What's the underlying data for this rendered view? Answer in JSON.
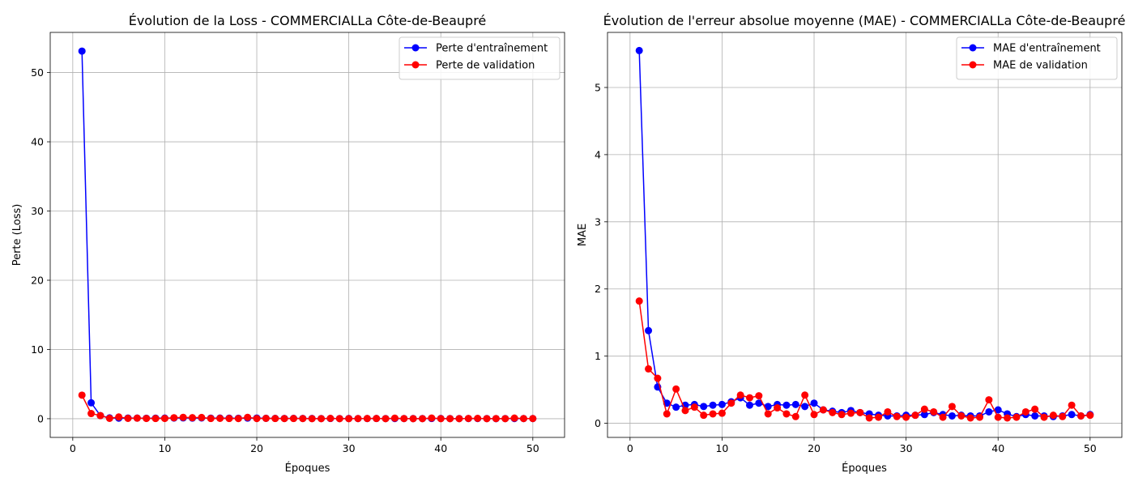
{
  "chart_data": [
    {
      "type": "line",
      "title": "Évolution de la Loss - COMMERCIALLa Côte-de-Beaupré",
      "xlabel": "Époques",
      "ylabel": "Perte (Loss)",
      "xlim": [
        -2.45,
        53.45
      ],
      "ylim": [
        -2.7,
        55.8
      ],
      "xticks": [
        0,
        10,
        20,
        30,
        40,
        50
      ],
      "yticks": [
        0,
        10,
        20,
        30,
        40,
        50
      ],
      "grid": true,
      "legend_position": "top-right",
      "x": [
        1,
        2,
        3,
        4,
        5,
        6,
        7,
        8,
        9,
        10,
        11,
        12,
        13,
        14,
        15,
        16,
        17,
        18,
        19,
        20,
        21,
        22,
        23,
        24,
        25,
        26,
        27,
        28,
        29,
        30,
        31,
        32,
        33,
        34,
        35,
        36,
        37,
        38,
        39,
        40,
        41,
        42,
        43,
        44,
        45,
        46,
        47,
        48,
        49,
        50
      ],
      "series": [
        {
          "name": "Perte d'entraînement",
          "color": "#0000ff",
          "values": [
            53.1,
            2.3,
            0.45,
            0.12,
            0.08,
            0.1,
            0.09,
            0.07,
            0.08,
            0.09,
            0.1,
            0.12,
            0.09,
            0.11,
            0.08,
            0.09,
            0.08,
            0.07,
            0.09,
            0.1,
            0.06,
            0.05,
            0.04,
            0.05,
            0.04,
            0.03,
            0.02,
            0.03,
            0.02,
            0.03,
            0.02,
            0.02,
            0.03,
            0.02,
            0.02,
            0.02,
            0.02,
            0.02,
            0.03,
            0.03,
            0.02,
            0.02,
            0.02,
            0.02,
            0.02,
            0.01,
            0.02,
            0.02,
            0.02,
            0.02
          ]
        },
        {
          "name": "Perte de validation",
          "color": "#ff0000",
          "values": [
            3.4,
            0.75,
            0.45,
            0.05,
            0.25,
            0.05,
            0.08,
            0.04,
            0.03,
            0.04,
            0.14,
            0.2,
            0.15,
            0.18,
            0.03,
            0.05,
            0.03,
            0.02,
            0.2,
            0.02,
            0.05,
            0.03,
            0.02,
            0.03,
            0.02,
            0.01,
            0.01,
            0.05,
            0.01,
            0.01,
            0.02,
            0.03,
            0.03,
            0.01,
            0.08,
            0.02,
            0.01,
            0.01,
            0.1,
            0.01,
            0.01,
            0.01,
            0.04,
            0.05,
            0.01,
            0.02,
            0.01,
            0.09,
            0.02,
            0.02
          ]
        }
      ]
    },
    {
      "type": "line",
      "title": "Évolution de l'erreur absolue moyenne (MAE) - COMMERCIALLa Côte-de-Beaupré",
      "xlabel": "Époques",
      "ylabel": "MAE",
      "xlim": [
        -2.45,
        53.45
      ],
      "ylim": [
        -0.21,
        5.82
      ],
      "xticks": [
        0,
        10,
        20,
        30,
        40,
        50
      ],
      "yticks": [
        0,
        1,
        2,
        3,
        4,
        5
      ],
      "grid": true,
      "legend_position": "top-right",
      "x": [
        1,
        2,
        3,
        4,
        5,
        6,
        7,
        8,
        9,
        10,
        11,
        12,
        13,
        14,
        15,
        16,
        17,
        18,
        19,
        20,
        21,
        22,
        23,
        24,
        25,
        26,
        27,
        28,
        29,
        30,
        31,
        32,
        33,
        34,
        35,
        36,
        37,
        38,
        39,
        40,
        41,
        42,
        43,
        44,
        45,
        46,
        47,
        48,
        49,
        50
      ],
      "series": [
        {
          "name": "MAE d'entraînement",
          "color": "#0000ff",
          "values": [
            5.55,
            1.38,
            0.54,
            0.3,
            0.24,
            0.27,
            0.28,
            0.25,
            0.27,
            0.28,
            0.32,
            0.38,
            0.27,
            0.3,
            0.25,
            0.28,
            0.27,
            0.28,
            0.25,
            0.3,
            0.2,
            0.18,
            0.16,
            0.19,
            0.16,
            0.14,
            0.12,
            0.11,
            0.11,
            0.12,
            0.12,
            0.13,
            0.16,
            0.13,
            0.11,
            0.12,
            0.11,
            0.11,
            0.17,
            0.2,
            0.14,
            0.1,
            0.13,
            0.11,
            0.11,
            0.1,
            0.11,
            0.13,
            0.11,
            0.13
          ]
        },
        {
          "name": "MAE de validation",
          "color": "#ff0000",
          "values": [
            1.82,
            0.81,
            0.67,
            0.14,
            0.51,
            0.19,
            0.24,
            0.12,
            0.14,
            0.15,
            0.3,
            0.42,
            0.38,
            0.41,
            0.14,
            0.23,
            0.14,
            0.1,
            0.42,
            0.13,
            0.2,
            0.16,
            0.13,
            0.15,
            0.16,
            0.08,
            0.09,
            0.17,
            0.1,
            0.09,
            0.12,
            0.21,
            0.17,
            0.09,
            0.25,
            0.11,
            0.08,
            0.09,
            0.35,
            0.09,
            0.08,
            0.09,
            0.17,
            0.21,
            0.09,
            0.12,
            0.1,
            0.27,
            0.11,
            0.12
          ]
        }
      ]
    }
  ]
}
